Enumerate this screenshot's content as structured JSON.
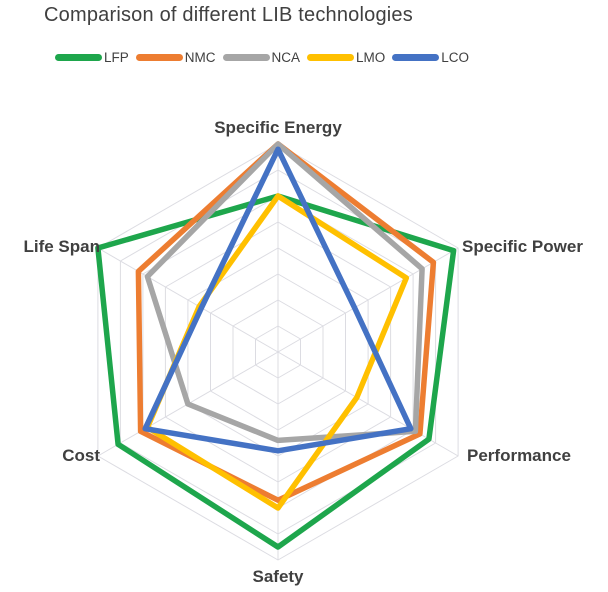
{
  "title": "Comparison of different LIB technologies",
  "colors": {
    "title_text": "#404040",
    "axis_label_text": "#404040",
    "grid": "#DCDCE2",
    "background": "#FFFFFF"
  },
  "chart_data": {
    "type": "radar",
    "title": "Comparison of different LIB technologies",
    "axes": [
      "Specific Energy",
      "Specific Power",
      "Performance",
      "Safety",
      "Cost",
      "Life Span"
    ],
    "scale": {
      "min": 0,
      "max": 4,
      "rings": 8,
      "ring_step": 0.5
    },
    "grid": true,
    "legend_position": "top",
    "series": [
      {
        "name": "LFP",
        "color": "#1EA64C",
        "values": [
          3.0,
          3.9,
          3.35,
          3.75,
          3.55,
          4.0
        ]
      },
      {
        "name": "NMC",
        "color": "#ED7D31",
        "values": [
          4.0,
          3.45,
          3.15,
          2.85,
          3.05,
          3.1
        ]
      },
      {
        "name": "NCA",
        "color": "#A6A6A6",
        "values": [
          4.0,
          3.2,
          3.05,
          1.7,
          2.0,
          2.9
        ]
      },
      {
        "name": "LMO",
        "color": "#FFC000",
        "values": [
          3.0,
          2.85,
          1.75,
          3.0,
          2.9,
          1.75
        ]
      },
      {
        "name": "LCO",
        "color": "#4472C4",
        "values": [
          3.9,
          1.7,
          2.95,
          1.9,
          2.95,
          1.7
        ]
      }
    ]
  }
}
